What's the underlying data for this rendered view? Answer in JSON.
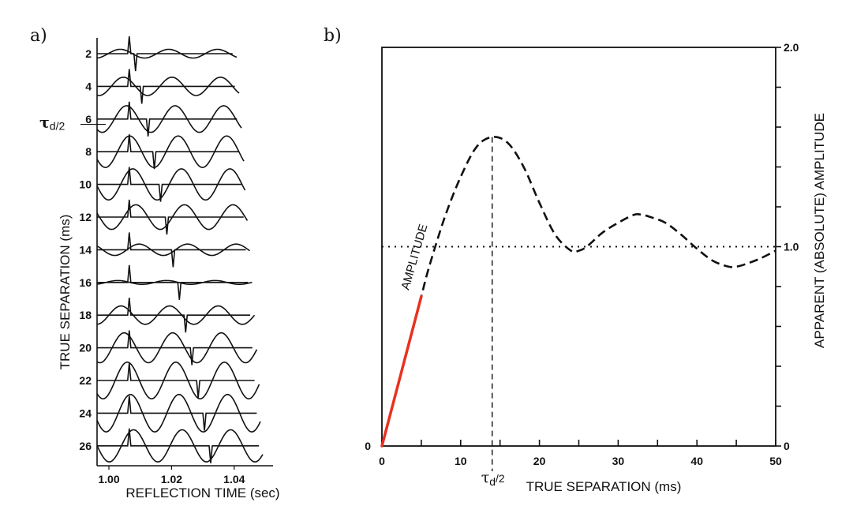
{
  "figure": {
    "panel_a_label": "a)",
    "panel_b_label": "b)"
  },
  "chart_data": [
    {
      "type": "line",
      "panel": "a",
      "description": "Synthetic seismogram wedge-model traces: spike pair (reflection coefficients) and convolved wavelet for each true separation",
      "xlabel": "REFLECTION TIME (sec)",
      "ylabel": "TRUE SEPARATION (ms)",
      "xlim": [
        0.996,
        1.048
      ],
      "x_ticks": [
        1.0,
        1.02,
        1.04
      ],
      "x_tick_labels": [
        "1.00",
        "1.02",
        "1.04"
      ],
      "y_tick_labels": [
        "2",
        "4",
        "6",
        "8",
        "10",
        "12",
        "14",
        "16",
        "18",
        "20",
        "22",
        "24",
        "26"
      ],
      "separations_ms": [
        2,
        4,
        6,
        8,
        10,
        12,
        14,
        16,
        18,
        20,
        22,
        24,
        26
      ],
      "first_spike_time_s": 1.0065,
      "wavelet_period_s": 0.0155,
      "annotation": "τd/2",
      "annotation_at_separation_ms": 7
    },
    {
      "type": "line",
      "panel": "b",
      "description": "Apparent amplitude vs true separation (tuning curve)",
      "xlabel": "TRUE SEPARATION (ms)",
      "ylabel": "APPARENT (ABSOLUTE) AMPLITUDE",
      "xlim": [
        0,
        50
      ],
      "ylim": [
        0,
        2.0
      ],
      "x_ticks": [
        0,
        10,
        20,
        30,
        40,
        50
      ],
      "x_tick_labels": [
        "0",
        "10",
        "20",
        "30",
        "40",
        "50"
      ],
      "y_tick_labels_right": [
        "0",
        "1.0",
        "2.0"
      ],
      "y_tick_values_right": [
        0,
        1.0,
        2.0
      ],
      "y_minor_step": 0.2,
      "left_axis_tick_label": "0",
      "series": [
        {
          "name": "AMPLITUDE",
          "style": "dashed",
          "x": [
            0,
            2,
            4,
            5,
            6,
            8,
            10,
            12,
            14,
            16,
            18,
            20,
            22,
            24,
            25,
            26,
            28,
            30,
            32,
            33,
            34,
            36,
            38,
            40,
            42,
            44,
            45,
            46,
            48,
            50
          ],
          "y": [
            0,
            0.3,
            0.6,
            0.75,
            0.9,
            1.15,
            1.35,
            1.5,
            1.55,
            1.52,
            1.4,
            1.22,
            1.06,
            0.98,
            0.98,
            1.0,
            1.07,
            1.12,
            1.16,
            1.16,
            1.15,
            1.12,
            1.06,
            0.99,
            0.93,
            0.9,
            0.9,
            0.91,
            0.94,
            0.98
          ]
        },
        {
          "name": "linear-trend",
          "style": "solid",
          "color": "#e8321e",
          "x": [
            0,
            5
          ],
          "y": [
            0,
            0.75
          ]
        },
        {
          "name": "reference-1.0",
          "style": "dotted",
          "x": [
            0,
            50
          ],
          "y": [
            1.0,
            1.0
          ]
        }
      ],
      "vertical_marker": {
        "x": 14,
        "label": "τd/2",
        "style": "dashed"
      },
      "curve_label": "AMPLITUDE"
    }
  ]
}
